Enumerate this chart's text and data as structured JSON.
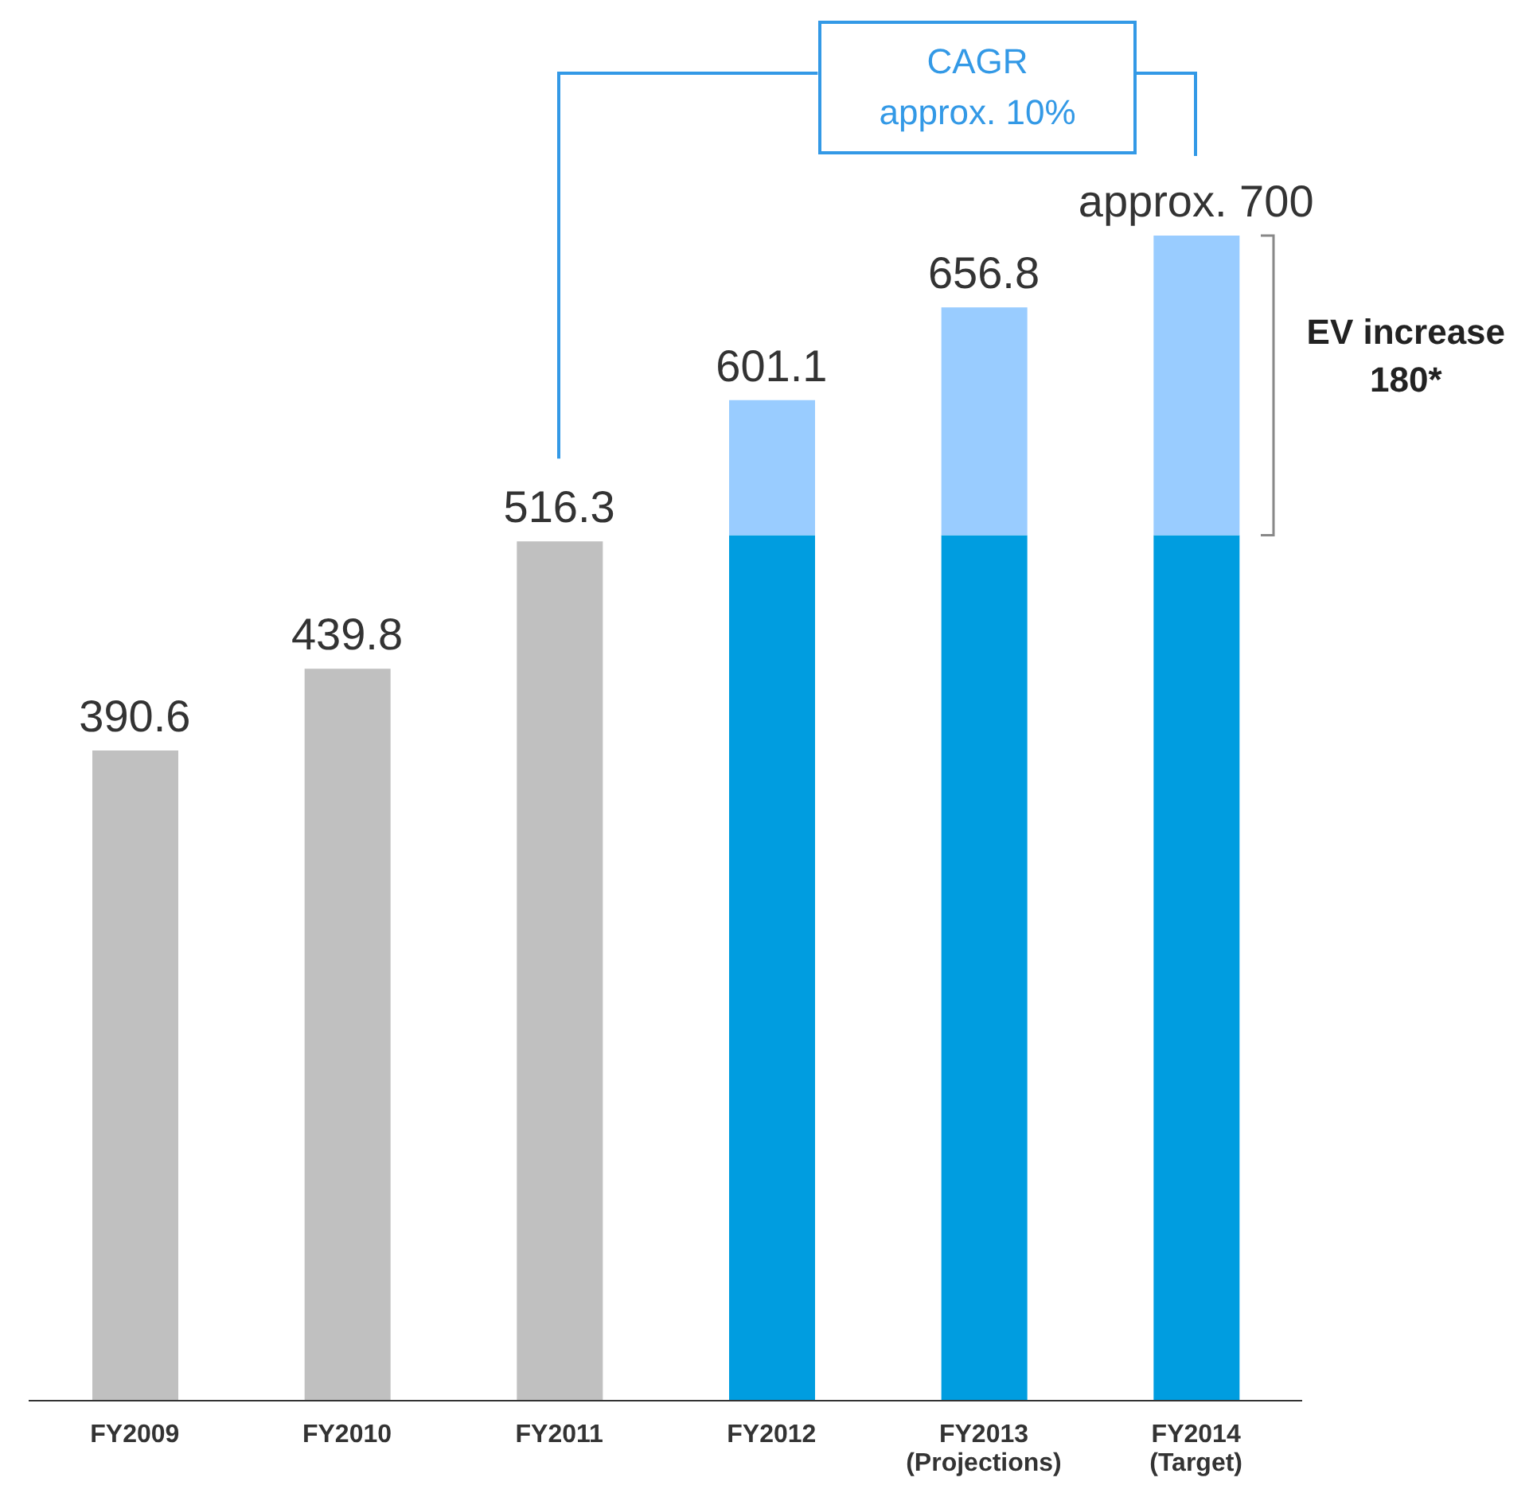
{
  "chart_data": {
    "type": "bar",
    "stacked": true,
    "categories": [
      "FY2009",
      "FY2010",
      "FY2011",
      "FY2012",
      "FY2013\n(Projections)",
      "FY2014\n(Target)"
    ],
    "series": [
      {
        "color": "#c0c0c0",
        "values": [
          390.6,
          439.8,
          516.3,
          null,
          null,
          null
        ],
        "value_labels": [
          "390.6",
          "439.8",
          "516.3",
          null,
          null,
          null
        ]
      },
      {
        "color": "#009de0",
        "values": [
          null,
          null,
          null,
          520,
          520,
          520
        ]
      },
      {
        "color": "#99ccff",
        "values": [
          null,
          null,
          null,
          81.1,
          136.8,
          180
        ]
      }
    ],
    "totals": [
      null,
      null,
      null,
      "601.1",
      "656.8",
      "approx. 700"
    ],
    "annotations": [
      "CAGR\napprox. 10%",
      "EV increase\n180*"
    ],
    "grid": false,
    "legend": false
  }
}
